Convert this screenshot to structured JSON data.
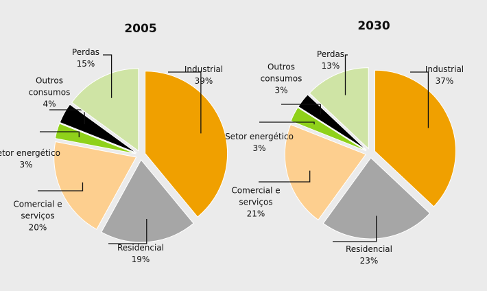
{
  "chart_data": [
    {
      "type": "pie",
      "title": "2005",
      "categories": [
        "Industrial",
        "Residencial",
        "Comercial e serviços",
        "Setor energético",
        "Outros consumos",
        "Perdas"
      ],
      "values": [
        39,
        19,
        20,
        3,
        4,
        15
      ],
      "value_labels": [
        "39%",
        "19%",
        "20%",
        "3%",
        "4%",
        "15%"
      ],
      "colors": [
        "#f0a000",
        "#a6a6a6",
        "#fdcf8f",
        "#8fd11a",
        "#000000",
        "#cfe4a5"
      ]
    },
    {
      "type": "pie",
      "title": "2030",
      "categories": [
        "Industrial",
        "Residencial",
        "Comercial e serviços",
        "Setor energético",
        "Outros consumos",
        "Perdas"
      ],
      "values": [
        37,
        23,
        21,
        3,
        3,
        13
      ],
      "value_labels": [
        "37%",
        "23%",
        "21%",
        "3%",
        "3%",
        "13%"
      ],
      "colors": [
        "#f0a000",
        "#a6a6a6",
        "#fdcf8f",
        "#8fd11a",
        "#000000",
        "#cfe4a5"
      ]
    }
  ]
}
